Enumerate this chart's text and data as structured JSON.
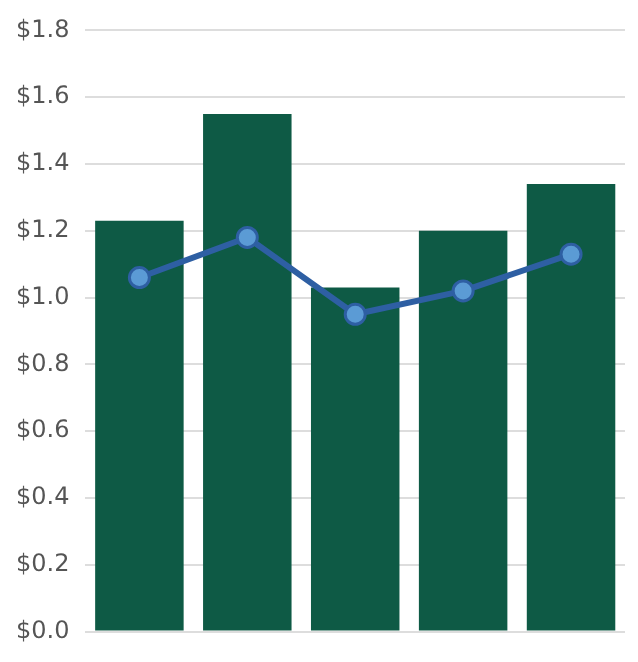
{
  "chart_data": {
    "type": "bar",
    "categories": [
      null,
      null,
      null,
      null,
      null
    ],
    "series": [
      {
        "color": "#0e5a45",
        "values": [
          1.23,
          1.55,
          1.03,
          1.2,
          1.34
        ]
      },
      {
        "type": "line",
        "color": "#2e5fa3",
        "values": [
          1.06,
          1.18,
          0.95,
          1.02,
          1.13
        ]
      }
    ],
    "marker": "circle",
    "ylim": [
      0,
      1.8
    ],
    "yticks": [
      {
        "value": 0,
        "label": "$0.0"
      },
      {
        "value": 0.2,
        "label": "$0.2"
      },
      {
        "value": 0.4,
        "label": "$0.4"
      },
      {
        "value": 0.6,
        "label": "$0.6"
      },
      {
        "value": 0.8,
        "label": "$0.8"
      },
      {
        "value": 1,
        "label": "$1.0"
      },
      {
        "value": 1.2,
        "label": "$1.2"
      },
      {
        "value": 1.4,
        "label": "$1.4"
      },
      {
        "value": 1.6,
        "label": "$1.6"
      },
      {
        "value": 1.8,
        "label": "$1.8"
      }
    ],
    "grid": "y",
    "tick_labels": "y"
  }
}
